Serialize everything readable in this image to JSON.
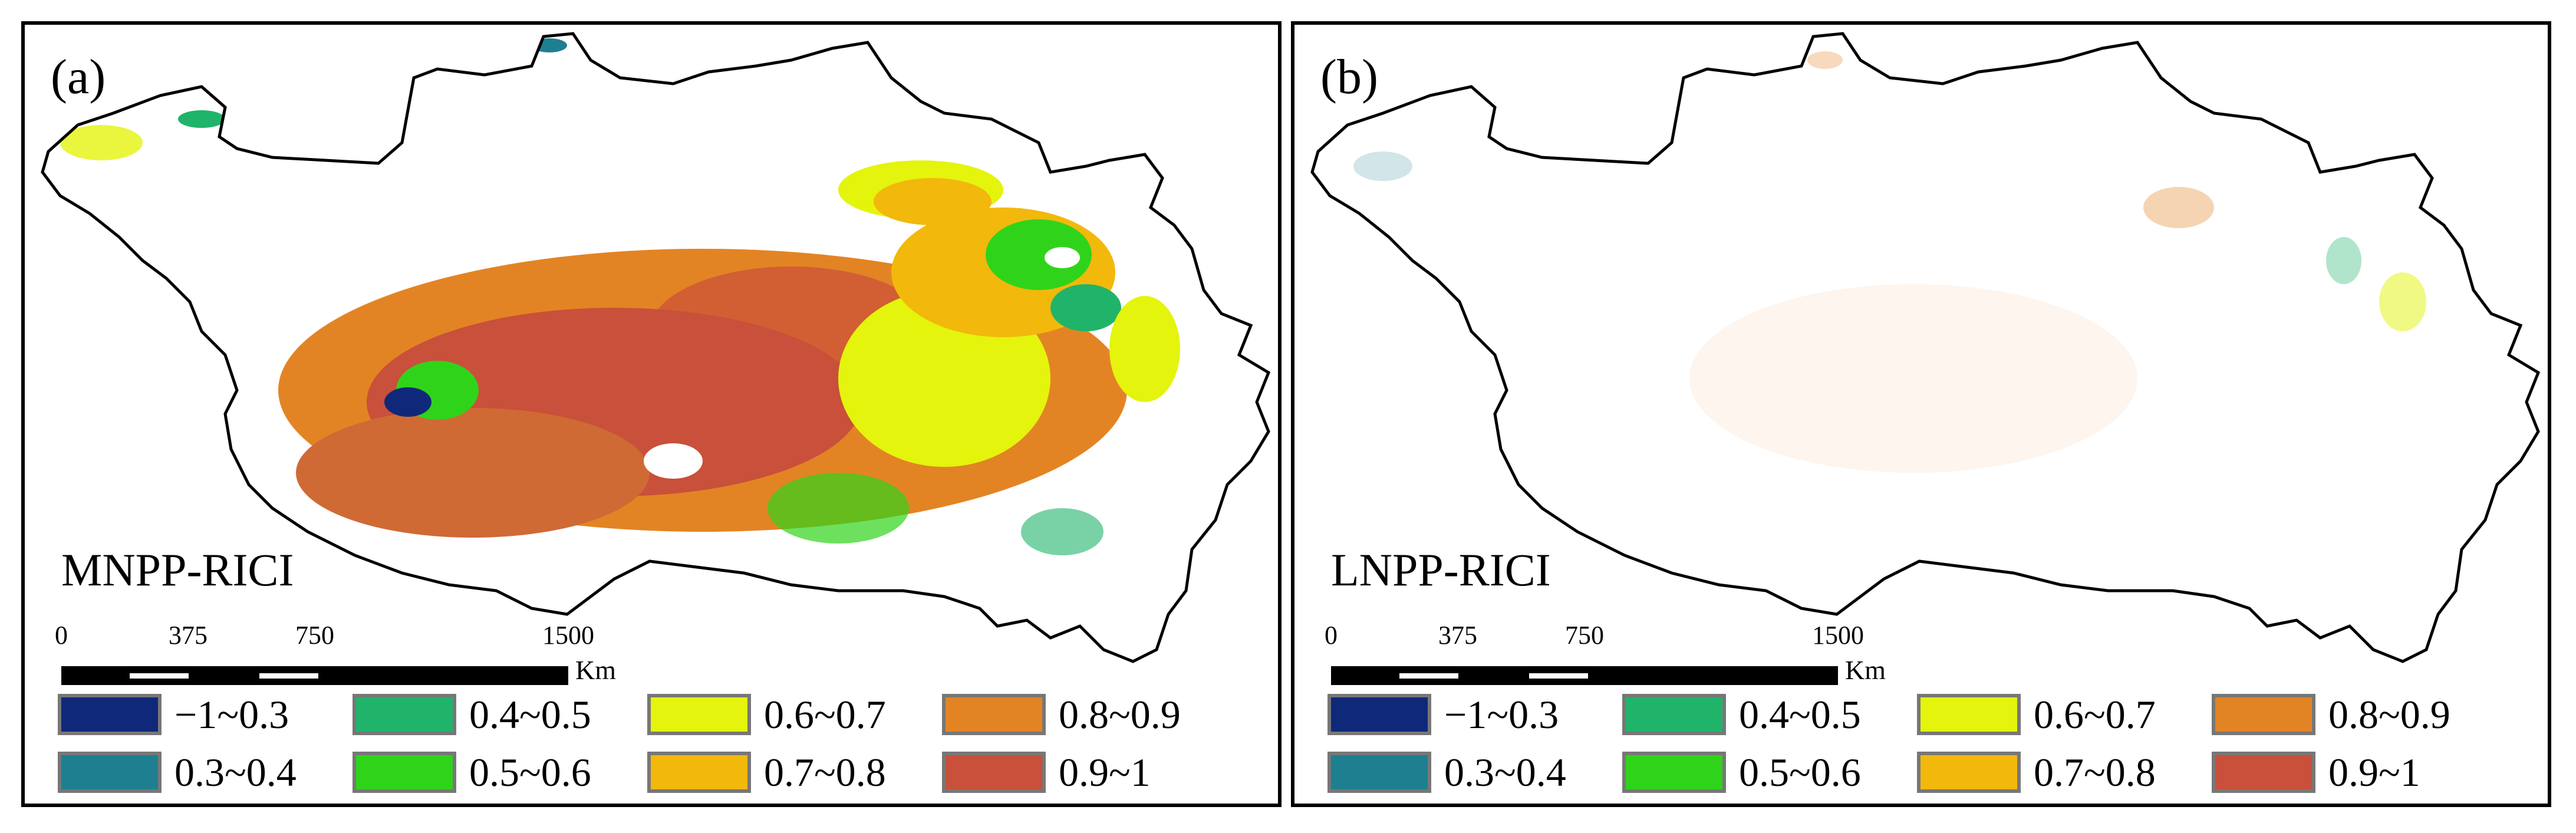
{
  "panels": [
    {
      "label": "(a)",
      "title": "MNPP-RICI"
    },
    {
      "label": "(b)",
      "title": "LNPP-RICI"
    }
  ],
  "scale_bar": {
    "ticks": [
      "0",
      "375",
      "750",
      "1500"
    ],
    "unit": "Km"
  },
  "legend": [
    {
      "label": "−1~0.3",
      "color": "#10287a"
    },
    {
      "label": "0.3~0.4",
      "color": "#1e7f90"
    },
    {
      "label": "0.4~0.5",
      "color": "#1fb46a"
    },
    {
      "label": "0.5~0.6",
      "color": "#2fd41a"
    },
    {
      "label": "0.6~0.7",
      "color": "#e4f40c"
    },
    {
      "label": "0.7~0.8",
      "color": "#f2b80c"
    },
    {
      "label": "0.8~0.9",
      "color": "#e38424"
    },
    {
      "label": "0.9~1",
      "color": "#c9503a"
    }
  ]
}
